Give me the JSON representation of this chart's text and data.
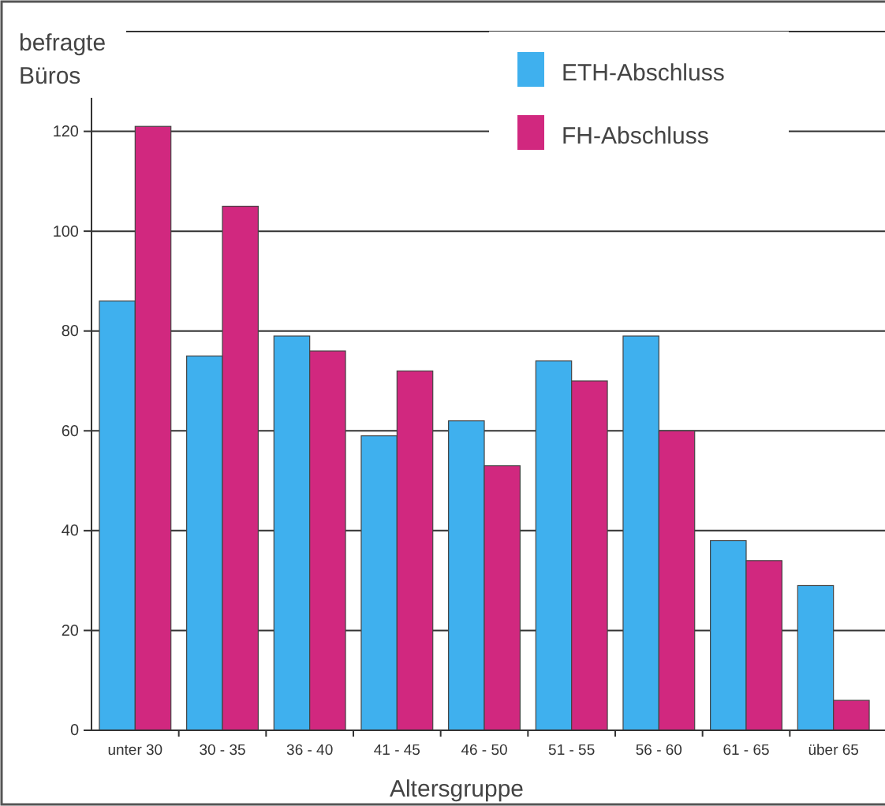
{
  "chart_data": {
    "type": "bar",
    "ylabel": "befragte Büros",
    "xlabel": "Altersgruppe",
    "categories": [
      "unter 30",
      "30 - 35",
      "36 - 40",
      "41 - 45",
      "46 - 50",
      "51 - 55",
      "56 - 60",
      "61 - 65",
      "über 65"
    ],
    "series": [
      {
        "name": "ETH-Abschluss",
        "color": "#3fb0ee",
        "values": [
          86,
          75,
          79,
          59,
          62,
          74,
          79,
          38,
          29
        ]
      },
      {
        "name": "FH-Abschluss",
        "color": "#d1287f",
        "values": [
          121,
          105,
          76,
          72,
          53,
          70,
          60,
          34,
          6
        ]
      }
    ],
    "ylim": [
      0,
      140
    ],
    "yticks": [
      0,
      20,
      40,
      60,
      80,
      100,
      120,
      {
        "value": 140,
        "label": null
      }
    ],
    "grid": "y",
    "legend": "top"
  }
}
